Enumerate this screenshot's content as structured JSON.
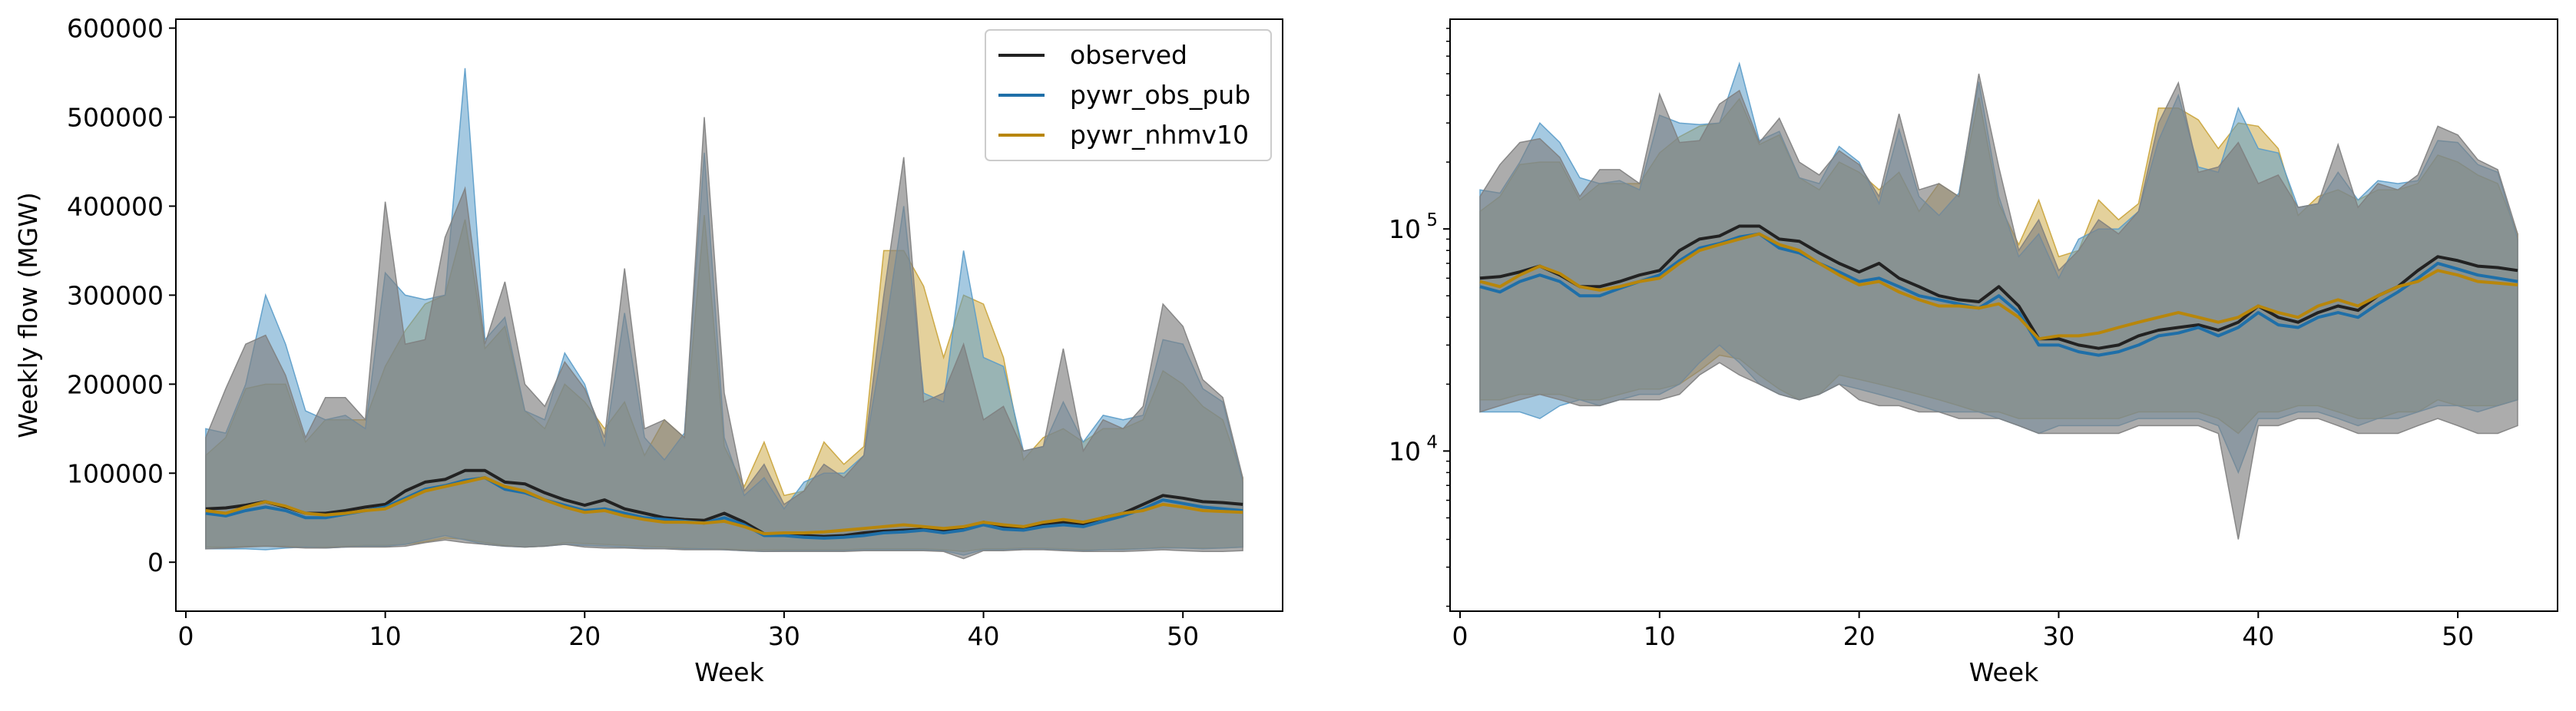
{
  "colors": {
    "observed": "#222222",
    "observed_band": "#808080",
    "pywr_obs_pub": "#1f6fa8",
    "pywr_obs_pub_band": "#5b9cc9",
    "pywr_nhmv10": "#b8860b",
    "pywr_nhmv10_band": "#c9a33a"
  },
  "chart_data": [
    {
      "type": "area",
      "panel": "left",
      "xlabel": "Week",
      "ylabel": "Weekly flow (MGW)",
      "xlim": [
        -0.5,
        55
      ],
      "ylim": [
        -55000,
        610000
      ],
      "yscale": "linear",
      "xticks": [
        0,
        10,
        20,
        30,
        40,
        50
      ],
      "yticks": [
        0,
        100000,
        200000,
        300000,
        400000,
        500000,
        600000
      ],
      "legend": {
        "position": "upper right",
        "entries": [
          "observed",
          "pywr_obs_pub",
          "pywr_nhmv10"
        ]
      },
      "grid": false,
      "x": [
        1,
        2,
        3,
        4,
        5,
        6,
        7,
        8,
        9,
        10,
        11,
        12,
        13,
        14,
        15,
        16,
        17,
        18,
        19,
        20,
        21,
        22,
        23,
        24,
        25,
        26,
        27,
        28,
        29,
        30,
        31,
        32,
        33,
        34,
        35,
        36,
        37,
        38,
        39,
        40,
        41,
        42,
        43,
        44,
        45,
        46,
        47,
        48,
        49,
        50,
        51,
        52,
        53
      ],
      "series": [
        {
          "name": "observed",
          "median": [
            60000,
            61000,
            64000,
            68000,
            62000,
            55000,
            55000,
            58000,
            62000,
            65000,
            80000,
            90000,
            93000,
            103000,
            103000,
            90000,
            88000,
            78000,
            70000,
            64000,
            70000,
            60000,
            55000,
            50000,
            48000,
            47000,
            55000,
            45000,
            32000,
            32000,
            30000,
            29000,
            30000,
            33000,
            35000,
            36000,
            37000,
            35000,
            38000,
            45000,
            40000,
            38000,
            42000,
            45000,
            43000,
            50000,
            55000,
            65000,
            75000,
            72000,
            68000,
            67000,
            65000
          ],
          "upper": [
            140000,
            195000,
            245000,
            255000,
            210000,
            140000,
            185000,
            185000,
            160000,
            405000,
            245000,
            250000,
            365000,
            420000,
            245000,
            315000,
            200000,
            175000,
            225000,
            195000,
            140000,
            330000,
            150000,
            160000,
            140000,
            500000,
            190000,
            80000,
            110000,
            65000,
            80000,
            110000,
            95000,
            120000,
            300000,
            455000,
            180000,
            190000,
            245000,
            160000,
            175000,
            125000,
            130000,
            240000,
            125000,
            160000,
            150000,
            175000,
            290000,
            265000,
            205000,
            185000,
            95000
          ],
          "lower": [
            15000,
            16000,
            17000,
            18000,
            17000,
            16000,
            16000,
            17000,
            17000,
            17000,
            18000,
            22000,
            25000,
            22000,
            20000,
            18000,
            17000,
            18000,
            20000,
            17000,
            16000,
            16000,
            15000,
            15000,
            14000,
            14000,
            14000,
            13000,
            12000,
            12000,
            12000,
            12000,
            12000,
            13000,
            13000,
            13000,
            13000,
            12000,
            4000,
            13000,
            13000,
            14000,
            14000,
            13000,
            12000,
            12000,
            12000,
            13000,
            14000,
            13000,
            12000,
            12000,
            13000
          ]
        },
        {
          "name": "pywr_obs_pub",
          "median": [
            55000,
            52000,
            58000,
            62000,
            58000,
            50000,
            50000,
            54000,
            58000,
            62000,
            72000,
            82000,
            86000,
            92000,
            95000,
            82000,
            78000,
            70000,
            64000,
            58000,
            60000,
            55000,
            50000,
            48000,
            46000,
            44000,
            50000,
            42000,
            30000,
            30000,
            28000,
            27000,
            28000,
            30000,
            33000,
            34000,
            36000,
            33000,
            36000,
            42000,
            37000,
            36000,
            40000,
            42000,
            40000,
            46000,
            52000,
            60000,
            70000,
            66000,
            62000,
            60000,
            58000
          ],
          "upper": [
            150000,
            145000,
            200000,
            300000,
            245000,
            170000,
            160000,
            165000,
            150000,
            325000,
            300000,
            295000,
            300000,
            555000,
            250000,
            275000,
            170000,
            160000,
            235000,
            200000,
            130000,
            280000,
            140000,
            115000,
            145000,
            460000,
            140000,
            75000,
            95000,
            60000,
            90000,
            100000,
            100000,
            120000,
            250000,
            400000,
            190000,
            180000,
            350000,
            230000,
            220000,
            125000,
            130000,
            180000,
            135000,
            165000,
            160000,
            165000,
            250000,
            245000,
            195000,
            180000,
            90000
          ],
          "lower": [
            15000,
            15000,
            15000,
            14000,
            16000,
            17000,
            16000,
            17000,
            18000,
            18000,
            20000,
            25000,
            30000,
            25000,
            20000,
            18000,
            17000,
            18000,
            20000,
            19000,
            18000,
            17000,
            16000,
            15000,
            15000,
            15000,
            14000,
            13000,
            12000,
            13000,
            13000,
            13000,
            13000,
            14000,
            14000,
            14000,
            14000,
            13000,
            8000,
            14000,
            14000,
            15000,
            15000,
            14000,
            13000,
            14000,
            14000,
            15000,
            16000,
            16000,
            15000,
            16000,
            17000
          ]
        },
        {
          "name": "pywr_nhmv10",
          "median": [
            58000,
            55000,
            62000,
            68000,
            63000,
            55000,
            53000,
            55000,
            58000,
            60000,
            70000,
            80000,
            85000,
            90000,
            95000,
            85000,
            80000,
            70000,
            62000,
            56000,
            58000,
            52000,
            48000,
            45000,
            45000,
            44000,
            46000,
            40000,
            32000,
            33000,
            33000,
            34000,
            36000,
            38000,
            40000,
            42000,
            40000,
            38000,
            40000,
            45000,
            42000,
            40000,
            45000,
            48000,
            45000,
            50000,
            55000,
            58000,
            65000,
            62000,
            58000,
            57000,
            56000
          ],
          "upper": [
            120000,
            140000,
            195000,
            200000,
            200000,
            135000,
            160000,
            160000,
            160000,
            220000,
            260000,
            290000,
            300000,
            385000,
            240000,
            265000,
            170000,
            150000,
            200000,
            180000,
            150000,
            180000,
            120000,
            160000,
            140000,
            390000,
            130000,
            85000,
            135000,
            75000,
            80000,
            135000,
            110000,
            130000,
            350000,
            350000,
            310000,
            230000,
            300000,
            290000,
            230000,
            115000,
            140000,
            150000,
            135000,
            150000,
            150000,
            160000,
            215000,
            200000,
            175000,
            160000,
            95000
          ],
          "lower": [
            17000,
            17000,
            18000,
            18000,
            18000,
            17000,
            17000,
            18000,
            19000,
            19000,
            20000,
            23000,
            27000,
            26000,
            22000,
            19000,
            17000,
            18000,
            22000,
            21000,
            20000,
            19000,
            18000,
            17000,
            16000,
            15000,
            15000,
            14000,
            14000,
            14000,
            14000,
            14000,
            14000,
            15000,
            15000,
            15000,
            15000,
            14000,
            12000,
            15000,
            15000,
            16000,
            16000,
            15000,
            14000,
            14000,
            15000,
            15000,
            17000,
            16000,
            16000,
            16000,
            17000
          ]
        }
      ]
    },
    {
      "type": "area",
      "panel": "right",
      "xlabel": "Week",
      "ylabel": "",
      "xlim": [
        -0.5,
        55
      ],
      "yscale": "log",
      "ylim": [
        1900,
        880000
      ],
      "xticks": [
        0,
        10,
        20,
        30,
        40,
        50
      ],
      "yticks_labeled": [
        10000,
        100000
      ],
      "ytick_labels": [
        "10^4",
        "10^5"
      ],
      "grid": false,
      "same_series_as": "left"
    }
  ]
}
